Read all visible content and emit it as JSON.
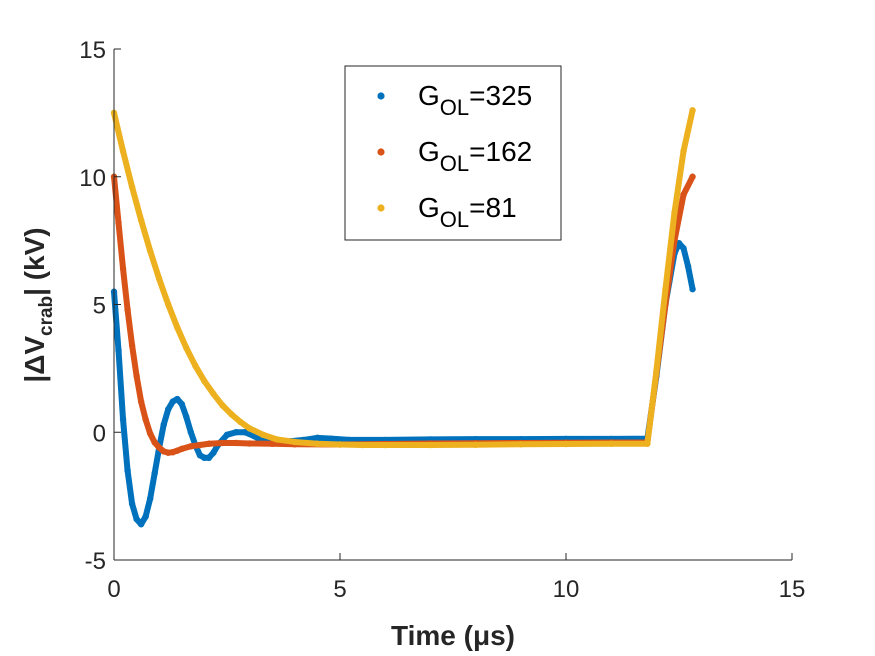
{
  "chart_data": {
    "type": "scatter",
    "xlabel": "Time (μs)",
    "ylabel_parts": {
      "pre": "|ΔV",
      "sub": "crab",
      "post": "| (kV)"
    },
    "xlim": [
      0,
      15
    ],
    "ylim": [
      -5,
      15
    ],
    "xticks": [
      0,
      5,
      10,
      15
    ],
    "yticks": [
      -5,
      0,
      5,
      10,
      15
    ],
    "xtick_labels": [
      "0",
      "5",
      "10",
      "15"
    ],
    "ytick_labels": [
      "-5",
      "0",
      "5",
      "10",
      "15"
    ],
    "grid": false,
    "box": true,
    "legend_position": "top-center",
    "series": [
      {
        "name": "G_OL=325",
        "legend": {
          "main": "G",
          "sub": "OL",
          "rest": "=325"
        },
        "color": "#0072BD",
        "x": [
          0,
          0.1,
          0.2,
          0.3,
          0.4,
          0.5,
          0.6,
          0.7,
          0.8,
          0.9,
          1.0,
          1.1,
          1.2,
          1.3,
          1.4,
          1.5,
          1.6,
          1.7,
          1.8,
          1.9,
          2.0,
          2.1,
          2.2,
          2.3,
          2.5,
          2.7,
          2.9,
          3.1,
          3.3,
          3.6,
          3.9,
          4.2,
          4.5,
          4.8,
          5.2,
          6,
          7,
          8,
          9,
          10,
          11,
          11.8,
          12.0,
          12.2,
          12.4,
          12.5,
          12.6,
          12.7,
          12.8
        ],
        "y": [
          5.5,
          3.2,
          0.5,
          -1.5,
          -2.8,
          -3.4,
          -3.6,
          -3.3,
          -2.6,
          -1.6,
          -0.6,
          0.3,
          0.9,
          1.2,
          1.3,
          1.1,
          0.6,
          0.0,
          -0.5,
          -0.9,
          -1.0,
          -1.0,
          -0.8,
          -0.5,
          -0.1,
          0.0,
          0.0,
          -0.15,
          -0.35,
          -0.4,
          -0.35,
          -0.3,
          -0.22,
          -0.25,
          -0.3,
          -0.3,
          -0.28,
          -0.27,
          -0.27,
          -0.26,
          -0.26,
          -0.25,
          2.2,
          5.0,
          7.0,
          7.4,
          7.2,
          6.5,
          5.6
        ]
      },
      {
        "name": "G_OL=162",
        "legend": {
          "main": "G",
          "sub": "OL",
          "rest": "=162"
        },
        "color": "#D95319",
        "x": [
          0,
          0.1,
          0.2,
          0.3,
          0.4,
          0.5,
          0.6,
          0.7,
          0.8,
          0.9,
          1.0,
          1.1,
          1.2,
          1.3,
          1.4,
          1.5,
          1.7,
          1.9,
          2.1,
          2.4,
          2.7,
          3.0,
          3.5,
          4.0,
          5.0,
          6,
          7,
          8,
          9,
          10,
          11,
          11.8,
          12.0,
          12.2,
          12.4,
          12.6,
          12.8
        ],
        "y": [
          10.0,
          8.2,
          6.4,
          4.8,
          3.4,
          2.2,
          1.2,
          0.5,
          -0.05,
          -0.4,
          -0.6,
          -0.75,
          -0.8,
          -0.78,
          -0.72,
          -0.65,
          -0.55,
          -0.5,
          -0.45,
          -0.42,
          -0.42,
          -0.44,
          -0.45,
          -0.47,
          -0.48,
          -0.46,
          -0.44,
          -0.43,
          -0.42,
          -0.41,
          -0.4,
          -0.4,
          2.3,
          5.0,
          7.5,
          9.3,
          10.0
        ]
      },
      {
        "name": "G_OL=81",
        "legend": {
          "main": "G",
          "sub": "OL",
          "rest": "=81"
        },
        "color": "#EDB120",
        "x": [
          0,
          0.2,
          0.4,
          0.6,
          0.8,
          1.0,
          1.2,
          1.4,
          1.6,
          1.8,
          2.0,
          2.2,
          2.4,
          2.6,
          2.8,
          3.0,
          3.3,
          3.6,
          4.0,
          4.5,
          5.0,
          5.5,
          6.0,
          7,
          8,
          9,
          10,
          11,
          11.8,
          12.0,
          12.2,
          12.4,
          12.6,
          12.8
        ],
        "y": [
          12.5,
          11.0,
          9.6,
          8.3,
          7.1,
          6.0,
          5.0,
          4.1,
          3.3,
          2.6,
          2.0,
          1.5,
          1.05,
          0.7,
          0.4,
          0.15,
          -0.1,
          -0.28,
          -0.38,
          -0.45,
          -0.48,
          -0.5,
          -0.5,
          -0.5,
          -0.49,
          -0.47,
          -0.46,
          -0.45,
          -0.45,
          2.4,
          5.6,
          8.6,
          11.0,
          12.6
        ]
      }
    ]
  }
}
